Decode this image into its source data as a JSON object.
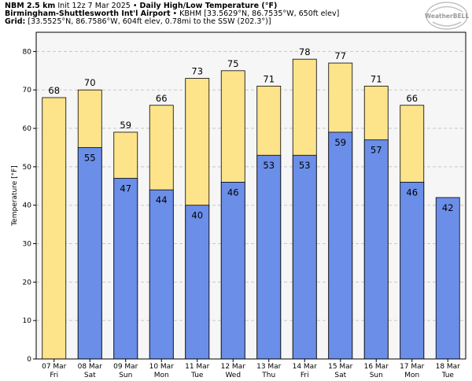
{
  "header": {
    "model": "NBM 2.5 km",
    "init": "Init 12z 7 Mar 2025",
    "bullet": "•",
    "product": "Daily High/Low Temperature (°F)",
    "station_name": "Birmingham-Shuttlesworth Int'l Airport",
    "station_info": "KBHM [33.5629°N, 86.7535°W, 650ft elev]",
    "grid_label": "Grid:",
    "grid_info": "[33.5525°N, 86.7586°W, 604ft elev, 0.78mi to the SSW (202.3°)]"
  },
  "logo": {
    "text": "WeatherBELL"
  },
  "chart_data": {
    "type": "bar",
    "ylabel": "Temperature [°F]",
    "ylim": [
      0,
      85
    ],
    "yticks": [
      0,
      10,
      20,
      30,
      40,
      50,
      60,
      70,
      80
    ],
    "grid": true,
    "categories": [
      {
        "date": "07 Mar",
        "day": "Fri"
      },
      {
        "date": "08 Mar",
        "day": "Sat"
      },
      {
        "date": "09 Mar",
        "day": "Sun"
      },
      {
        "date": "10 Mar",
        "day": "Mon"
      },
      {
        "date": "11 Mar",
        "day": "Tue"
      },
      {
        "date": "12 Mar",
        "day": "Wed"
      },
      {
        "date": "13 Mar",
        "day": "Thu"
      },
      {
        "date": "14 Mar",
        "day": "Fri"
      },
      {
        "date": "15 Mar",
        "day": "Sat"
      },
      {
        "date": "16 Mar",
        "day": "Sun"
      },
      {
        "date": "17 Mar",
        "day": "Mon"
      },
      {
        "date": "18 Mar",
        "day": "Tue"
      }
    ],
    "series": [
      {
        "values": [
          68,
          70,
          59,
          66,
          73,
          75,
          71,
          78,
          77,
          71,
          66,
          null
        ],
        "color": "#fde38a"
      },
      {
        "values": [
          null,
          55,
          47,
          44,
          40,
          46,
          53,
          53,
          59,
          57,
          46,
          42
        ],
        "color": "#6b8ee8"
      }
    ]
  },
  "colors": {
    "plot_bg": "#f6f6f6",
    "grid": "#c8c8c8",
    "high_bar": "#fde38a",
    "low_bar": "#6b8ee8",
    "bar_edge": "#000000"
  }
}
